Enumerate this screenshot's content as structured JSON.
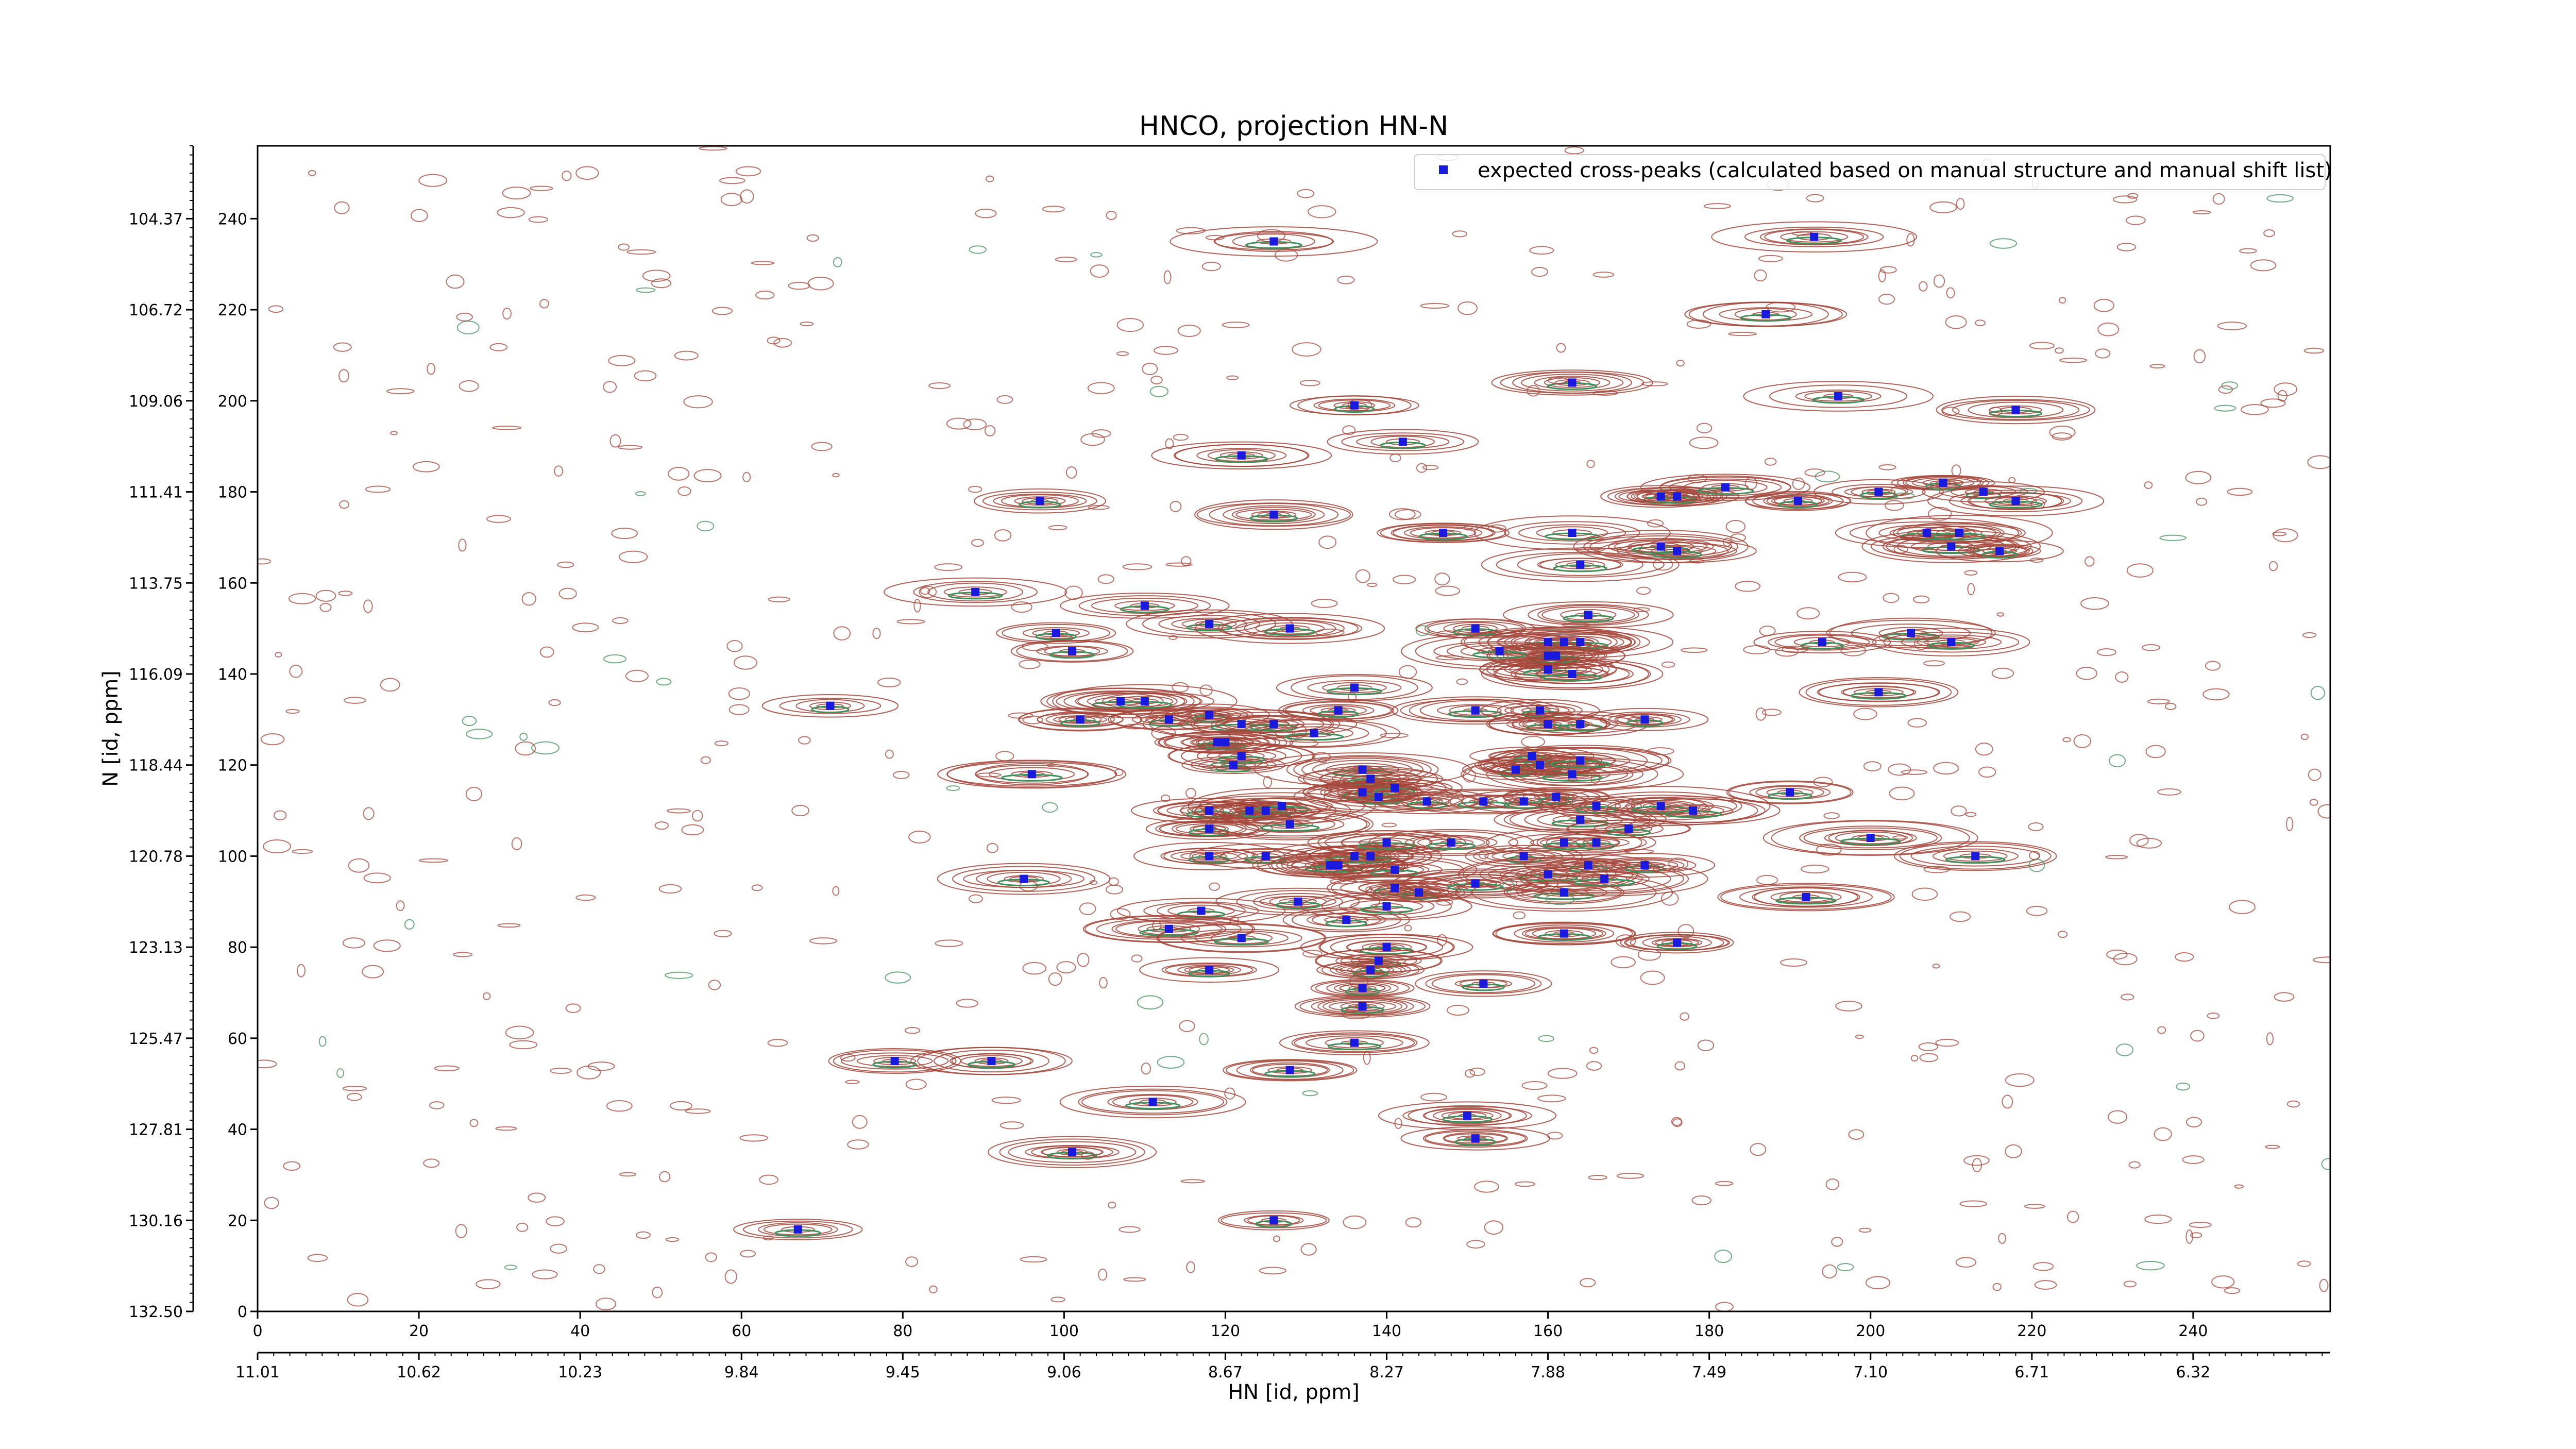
{
  "chart_data": {
    "type": "scatter",
    "title": "HNCO, projection HN-N",
    "xlabel": "HN [id, ppm]",
    "ylabel": "N [id, ppm]",
    "xlim_index": [
      0,
      257
    ],
    "ylim_index": [
      0,
      256
    ],
    "x_index_ticks": [
      "0",
      "20",
      "40",
      "60",
      "80",
      "100",
      "120",
      "140",
      "160",
      "180",
      "200",
      "220",
      "240"
    ],
    "x_ppm_ticks": [
      "11.01",
      "10.62",
      "10.23",
      "9.84",
      "9.45",
      "9.06",
      "8.67",
      "8.27",
      "7.88",
      "7.49",
      "7.10",
      "6.71",
      "6.32"
    ],
    "y_index_ticks": [
      "0",
      "20",
      "40",
      "60",
      "80",
      "100",
      "120",
      "140",
      "160",
      "180",
      "200",
      "220",
      "240"
    ],
    "y_ppm_ticks": [
      "132.50",
      "130.16",
      "127.81",
      "125.47",
      "123.13",
      "120.78",
      "118.44",
      "116.09",
      "113.75",
      "111.41",
      "109.06",
      "106.72",
      "104.37"
    ],
    "grid": false,
    "legend_position": "top-right",
    "colors": {
      "marker": "#1a1adf",
      "contour_positive": "#a5453a",
      "contour_negative": "#3f8f5a",
      "frame": "#000000"
    },
    "series": [
      {
        "name": "expected cross-peaks (calculated based on manual structure and manual shift list)",
        "points": [
          [
            126,
            235
          ],
          [
            193,
            236
          ],
          [
            187,
            219
          ],
          [
            163,
            204
          ],
          [
            196,
            201
          ],
          [
            136,
            199
          ],
          [
            122,
            188
          ],
          [
            142,
            191
          ],
          [
            201,
            180
          ],
          [
            218,
            198
          ],
          [
            126,
            175
          ],
          [
            147,
            171
          ],
          [
            163,
            171
          ],
          [
            174,
            179
          ],
          [
            176,
            179
          ],
          [
            182,
            181
          ],
          [
            191,
            178
          ],
          [
            209,
            182
          ],
          [
            214,
            180
          ],
          [
            218,
            178
          ],
          [
            207,
            171
          ],
          [
            210,
            168
          ],
          [
            211,
            171
          ],
          [
            216,
            167
          ],
          [
            97,
            178
          ],
          [
            89,
            158
          ],
          [
            110,
            155
          ],
          [
            118,
            151
          ],
          [
            128,
            150
          ],
          [
            99,
            149
          ],
          [
            101,
            145
          ],
          [
            151,
            150
          ],
          [
            160,
            147
          ],
          [
            162,
            147
          ],
          [
            164,
            147
          ],
          [
            160,
            144
          ],
          [
            161,
            144
          ],
          [
            160,
            141
          ],
          [
            163,
            140
          ],
          [
            154,
            145
          ],
          [
            165,
            153
          ],
          [
            164,
            164
          ],
          [
            174,
            168
          ],
          [
            176,
            167
          ],
          [
            194,
            147
          ],
          [
            205,
            149
          ],
          [
            210,
            147
          ],
          [
            201,
            136
          ],
          [
            71,
            133
          ],
          [
            107,
            134
          ],
          [
            110,
            134
          ],
          [
            102,
            130
          ],
          [
            113,
            130
          ],
          [
            118,
            131
          ],
          [
            122,
            129
          ],
          [
            126,
            129
          ],
          [
            134,
            132
          ],
          [
            136,
            137
          ],
          [
            151,
            132
          ],
          [
            159,
            132
          ],
          [
            160,
            129
          ],
          [
            164,
            129
          ],
          [
            172,
            130
          ],
          [
            119,
            125
          ],
          [
            120,
            125
          ],
          [
            121,
            120
          ],
          [
            122,
            122
          ],
          [
            96,
            118
          ],
          [
            131,
            127
          ],
          [
            137,
            119
          ],
          [
            156,
            119
          ],
          [
            159,
            120
          ],
          [
            158,
            122
          ],
          [
            163,
            118
          ],
          [
            164,
            121
          ],
          [
            138,
            117
          ],
          [
            139,
            113
          ],
          [
            137,
            114
          ],
          [
            141,
            115
          ],
          [
            145,
            112
          ],
          [
            152,
            112
          ],
          [
            157,
            112
          ],
          [
            161,
            113
          ],
          [
            164,
            108
          ],
          [
            166,
            111
          ],
          [
            174,
            111
          ],
          [
            166,
            103
          ],
          [
            170,
            106
          ],
          [
            178,
            110
          ],
          [
            190,
            114
          ],
          [
            118,
            110
          ],
          [
            118,
            106
          ],
          [
            118,
            100
          ],
          [
            125,
            100
          ],
          [
            123,
            110
          ],
          [
            125,
            110
          ],
          [
            127,
            111
          ],
          [
            128,
            107
          ],
          [
            133,
            98
          ],
          [
            134,
            98
          ],
          [
            136,
            100
          ],
          [
            138,
            100
          ],
          [
            140,
            103
          ],
          [
            141,
            97
          ],
          [
            157,
            100
          ],
          [
            162,
            103
          ],
          [
            160,
            96
          ],
          [
            165,
            98
          ],
          [
            172,
            98
          ],
          [
            148,
            103
          ],
          [
            95,
            95
          ],
          [
            141,
            93
          ],
          [
            144,
            92
          ],
          [
            151,
            94
          ],
          [
            162,
            92
          ],
          [
            167,
            95
          ],
          [
            200,
            104
          ],
          [
            213,
            100
          ],
          [
            117,
            88
          ],
          [
            113,
            84
          ],
          [
            122,
            82
          ],
          [
            129,
            90
          ],
          [
            135,
            86
          ],
          [
            140,
            89
          ],
          [
            162,
            83
          ],
          [
            176,
            81
          ],
          [
            192,
            91
          ],
          [
            118,
            75
          ],
          [
            140,
            80
          ],
          [
            139,
            77
          ],
          [
            138,
            75
          ],
          [
            137,
            71
          ],
          [
            137,
            67
          ],
          [
            128,
            53
          ],
          [
            136,
            59
          ],
          [
            152,
            72
          ],
          [
            79,
            55
          ],
          [
            91,
            55
          ],
          [
            111,
            46
          ],
          [
            150,
            43
          ],
          [
            151,
            38
          ],
          [
            101,
            35
          ],
          [
            67,
            18
          ],
          [
            126,
            20
          ]
        ]
      }
    ]
  }
}
